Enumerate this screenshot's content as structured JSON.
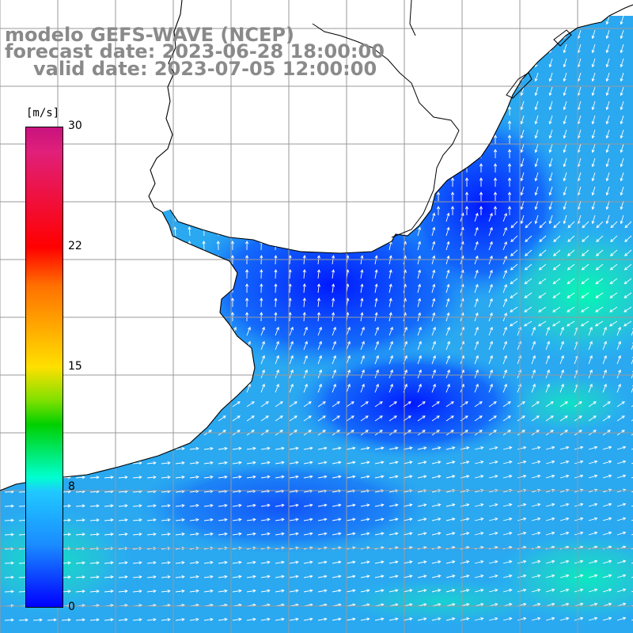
{
  "title": {
    "line1": "modelo GEFS-WAVE (NCEP)",
    "line2": "forecast date: 2023-06-28 18:00:00",
    "line3": "valid date: 2023-07-05 12:00:00"
  },
  "colorbar": {
    "unit": "[m/s]",
    "ticks": [
      "30",
      "22",
      "15",
      "8",
      "0"
    ],
    "range": [
      0,
      30
    ],
    "colors": [
      "#0000ff",
      "#1a8cff",
      "#20c8ff",
      "#00ffd0",
      "#00d000",
      "#ffe000",
      "#ff7000",
      "#ff0000",
      "#c8127e"
    ]
  },
  "map": {
    "variable": "wind speed and direction",
    "ocean_base_color": "#2aa8f0",
    "land_color": "#ffffff",
    "grid_color": "#9a9a9a",
    "coastline_color": "#000000"
  }
}
